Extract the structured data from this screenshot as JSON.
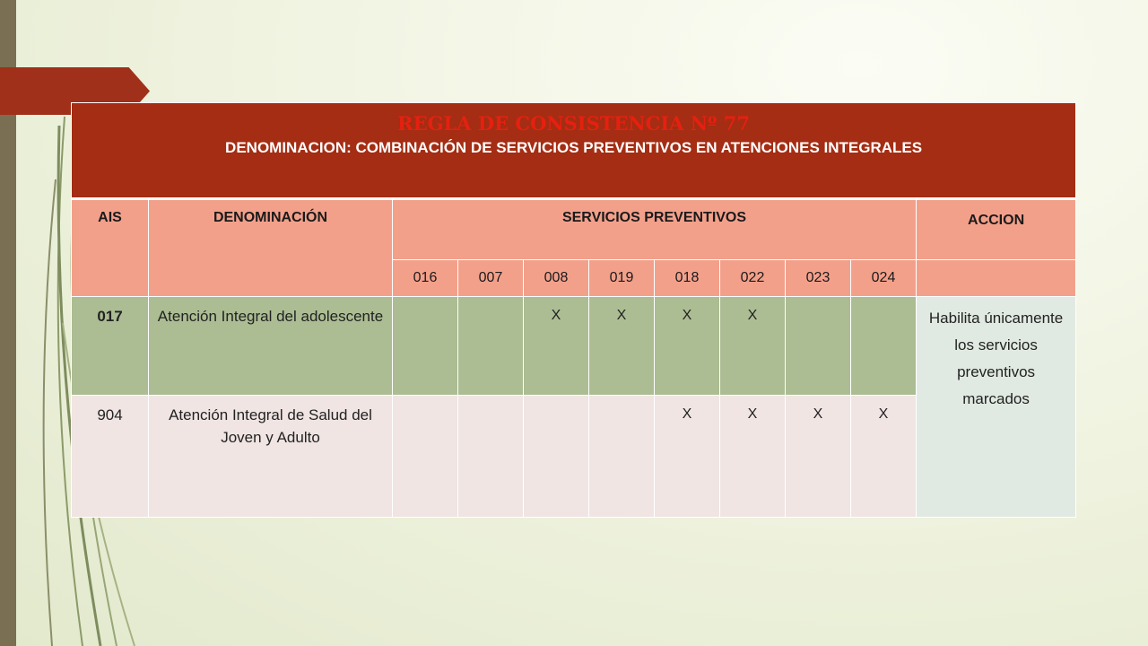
{
  "rule": {
    "title": "REGLA DE CONSISTENCIA Nº 77",
    "subtitle": "DENOMINACION: COMBINACIÓN DE SERVICIOS PREVENTIVOS EN ATENCIONES INTEGRALES"
  },
  "headers": {
    "ais": "AIS",
    "denominacion": "DENOMINACIÓN",
    "servicios": "SERVICIOS PREVENTIVOS",
    "accion": "ACCION",
    "codes": [
      "016",
      "007",
      "008",
      "019",
      "018",
      "022",
      "023",
      "024"
    ]
  },
  "rows": [
    {
      "ais": "017",
      "denominacion": "Atención Integral del adolescente",
      "marks": [
        "",
        "",
        "X",
        "X",
        "X",
        "X",
        "",
        ""
      ]
    },
    {
      "ais": "904",
      "denominacion": "Atención Integral de Salud del Joven y Adulto",
      "marks": [
        "",
        "",
        "",
        "",
        "X",
        "X",
        "X",
        "X"
      ]
    }
  ],
  "accion": "Habilita únicamente los servicios preventivos marcados",
  "colors": {
    "title_bg": "#a42d13",
    "title_text": "#e62010",
    "header_bg": "#f3a08b",
    "row1_bg": "#acbd93",
    "row2_bg": "#f0e5e3",
    "accion_bg": "#e1eae2"
  }
}
